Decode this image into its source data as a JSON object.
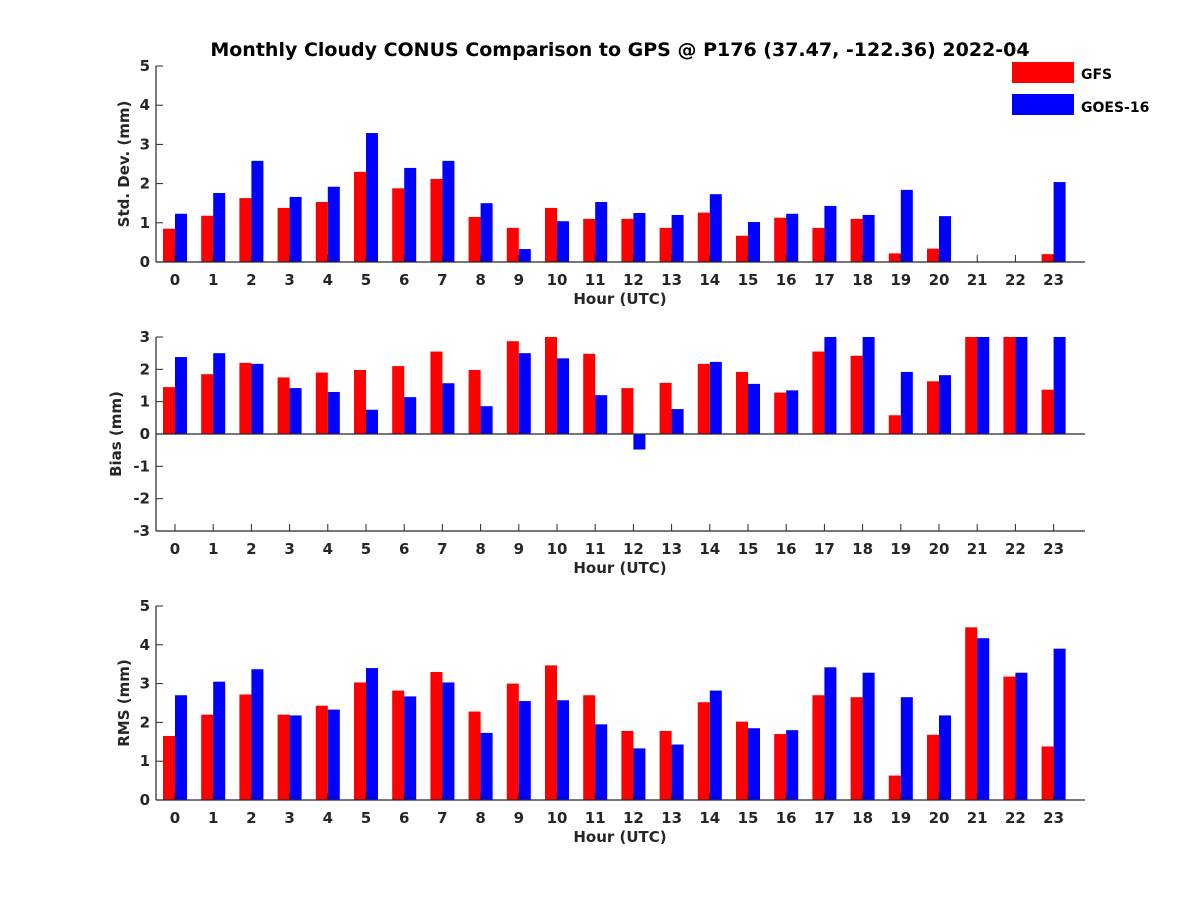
{
  "title": "Monthly Cloudy CONUS Comparison to GPS @ P176 (37.47, -122.36) 2022-04",
  "legend": {
    "placement": "top-right"
  },
  "colors": {
    "GFS": "#ff0000",
    "GOES-16": "#0000ff"
  },
  "chart_data": [
    {
      "type": "bar",
      "xlabel": "Hour (UTC)",
      "ylabel": "Std. Dev. (mm)",
      "ylim": [
        0,
        5
      ],
      "yticks": [
        "0",
        "1",
        "2",
        "3",
        "4",
        "5"
      ],
      "categories": [
        "0",
        "1",
        "2",
        "3",
        "4",
        "5",
        "6",
        "7",
        "8",
        "9",
        "10",
        "11",
        "12",
        "13",
        "14",
        "15",
        "16",
        "17",
        "18",
        "19",
        "20",
        "21",
        "22",
        "23"
      ],
      "series": [
        {
          "name": "GFS",
          "values": [
            0.85,
            1.18,
            1.63,
            1.38,
            1.53,
            2.3,
            1.88,
            2.12,
            1.15,
            0.87,
            1.38,
            1.1,
            1.1,
            0.87,
            1.26,
            0.67,
            1.13,
            0.87,
            1.1,
            0.22,
            0.34,
            0,
            0,
            0.2
          ]
        },
        {
          "name": "GOES-16",
          "values": [
            1.23,
            1.76,
            2.58,
            1.66,
            1.92,
            3.29,
            2.4,
            2.58,
            1.5,
            0.33,
            1.04,
            1.53,
            1.25,
            1.2,
            1.73,
            1.02,
            1.23,
            1.43,
            1.2,
            1.84,
            1.17,
            0,
            0,
            2.04
          ]
        }
      ]
    },
    {
      "type": "bar",
      "xlabel": "Hour (UTC)",
      "ylabel": "Bias (mm)",
      "ylim": [
        -3,
        3
      ],
      "yticks": [
        "-3",
        "-2",
        "-1",
        "0",
        "1",
        "2",
        "3"
      ],
      "categories": [
        "0",
        "1",
        "2",
        "3",
        "4",
        "5",
        "6",
        "7",
        "8",
        "9",
        "10",
        "11",
        "12",
        "13",
        "14",
        "15",
        "16",
        "17",
        "18",
        "19",
        "20",
        "21",
        "22",
        "23"
      ],
      "series": [
        {
          "name": "GFS",
          "values": [
            1.45,
            1.85,
            2.2,
            1.75,
            1.9,
            1.98,
            2.1,
            2.55,
            1.98,
            2.87,
            3.0,
            2.48,
            1.42,
            1.58,
            2.17,
            1.92,
            1.28,
            2.55,
            2.42,
            0.58,
            1.63,
            3.0,
            3.0,
            1.37
          ]
        },
        {
          "name": "GOES-16",
          "values": [
            2.38,
            2.5,
            2.17,
            1.42,
            1.3,
            0.75,
            1.14,
            1.57,
            0.86,
            2.5,
            2.34,
            1.2,
            -0.48,
            0.77,
            2.23,
            1.55,
            1.35,
            3.0,
            3.0,
            1.92,
            1.82,
            3.0,
            3.0,
            3.0
          ]
        }
      ]
    },
    {
      "type": "bar",
      "xlabel": "Hour (UTC)",
      "ylabel": "RMS (mm)",
      "ylim": [
        0,
        5
      ],
      "yticks": [
        "0",
        "1",
        "2",
        "3",
        "4",
        "5"
      ],
      "categories": [
        "0",
        "1",
        "2",
        "3",
        "4",
        "5",
        "6",
        "7",
        "8",
        "9",
        "10",
        "11",
        "12",
        "13",
        "14",
        "15",
        "16",
        "17",
        "18",
        "19",
        "20",
        "21",
        "22",
        "23"
      ],
      "series": [
        {
          "name": "GFS",
          "values": [
            1.65,
            2.2,
            2.72,
            2.2,
            2.43,
            3.03,
            2.82,
            3.3,
            2.28,
            3.0,
            3.47,
            2.7,
            1.78,
            1.78,
            2.52,
            2.02,
            1.7,
            2.7,
            2.65,
            0.63,
            1.68,
            4.45,
            3.18,
            1.38
          ]
        },
        {
          "name": "GOES-16",
          "values": [
            2.7,
            3.05,
            3.37,
            2.18,
            2.33,
            3.4,
            2.67,
            3.03,
            1.73,
            2.55,
            2.57,
            1.95,
            1.33,
            1.43,
            2.82,
            1.85,
            1.8,
            3.42,
            3.28,
            2.65,
            2.18,
            4.17,
            3.28,
            3.9
          ]
        }
      ]
    }
  ]
}
